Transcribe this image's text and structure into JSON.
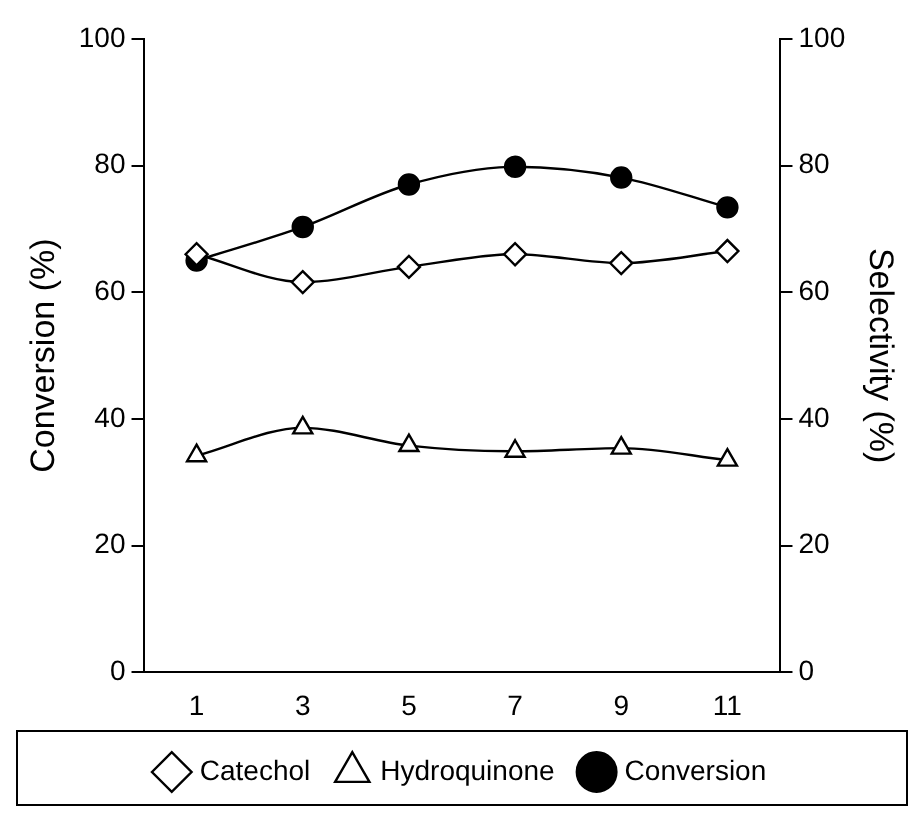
{
  "chart_data": {
    "type": "line",
    "ylabel": "Conversion (%)",
    "y2label": "Selectivity (%)",
    "categories": [
      "1",
      "3",
      "5",
      "7",
      "9",
      "11"
    ],
    "series": [
      {
        "name": "Conversion",
        "color": "#000000",
        "marker": "circle",
        "values": [
          65,
          70.3,
          77,
          79.8,
          78.1,
          73.4
        ]
      },
      {
        "name": "Hydroquinone",
        "color": "#000000",
        "marker": "triangle",
        "axis": "y2",
        "values": [
          34.2,
          38.6,
          35.8,
          34.9,
          35.4,
          33.5
        ]
      },
      {
        "name": "Catechol",
        "color": "#000000",
        "marker": "diamond",
        "axis": "y2",
        "values": [
          66,
          61.6,
          64,
          66,
          64.6,
          66.5
        ]
      }
    ],
    "ylim": [
      0,
      100
    ],
    "yticks": [
      0,
      20,
      40,
      60,
      80,
      100
    ],
    "y2lim": [
      0,
      100
    ],
    "y2ticks": [
      0,
      20,
      40,
      60,
      80,
      100
    ],
    "grid": false,
    "legend": "bottom",
    "line_style": "solid"
  }
}
